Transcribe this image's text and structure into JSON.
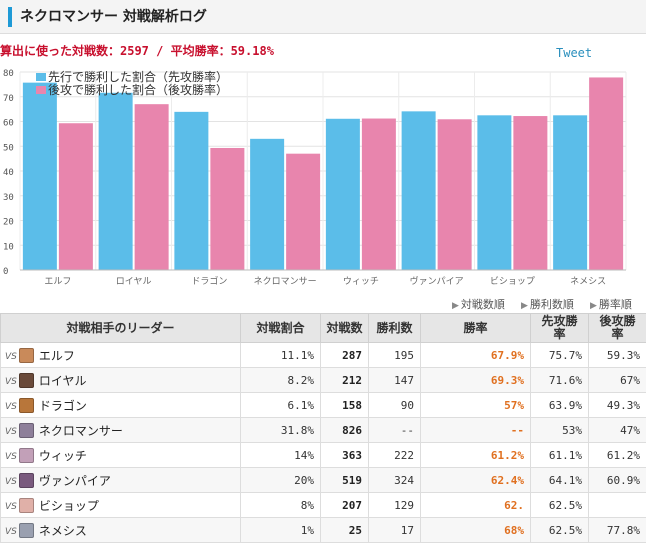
{
  "header": {
    "title": "ネクロマンサー 対戦解析ログ"
  },
  "summary": {
    "text": "算出に使った対戦数：2597 / 平均勝率：59.18%"
  },
  "tweet_label": "Tweet",
  "colors": {
    "first": "#5bbde9",
    "second": "#e885ad",
    "accent": "#1f9ad6",
    "winrate": "#e07020"
  },
  "chart_data": {
    "type": "bar",
    "categories": [
      "エルフ",
      "ロイヤル",
      "ドラゴン",
      "ネクロマンサー",
      "ウィッチ",
      "ヴァンパイア",
      "ビショップ",
      "ネメシス"
    ],
    "series": [
      {
        "name": "先行で勝利した割合（先攻勝率）",
        "values": [
          75.7,
          71.6,
          63.9,
          53,
          61.1,
          64.1,
          62.5,
          62.5
        ]
      },
      {
        "name": "後攻で勝利した割合（後攻勝率）",
        "values": [
          59.3,
          67,
          49.3,
          47,
          61.2,
          60.9,
          62.2,
          77.8
        ]
      }
    ],
    "yticks": [
      0,
      10,
      20,
      30,
      40,
      50,
      60,
      70,
      80
    ],
    "ylim": [
      0,
      80
    ],
    "grid": true,
    "legend": "top-left"
  },
  "sort_links": [
    "対戦数順",
    "勝利数順",
    "勝率順"
  ],
  "table": {
    "headers": [
      "対戦相手のリーダー",
      "対戦割合",
      "対戦数",
      "勝利数",
      "勝率",
      "先攻勝率",
      "後攻勝率"
    ],
    "vs_label": "VS",
    "rows": [
      {
        "leader": "エルフ",
        "ratio": "11.1%",
        "battles": "287",
        "wins": "195",
        "winrate": "67.9%",
        "first": "75.7%",
        "second": "59.3%",
        "avatar": "#c98a5a"
      },
      {
        "leader": "ロイヤル",
        "ratio": "8.2%",
        "battles": "212",
        "wins": "147",
        "winrate": "69.3%",
        "first": "71.6%",
        "second": "67%",
        "avatar": "#6a4a3a"
      },
      {
        "leader": "ドラゴン",
        "ratio": "6.1%",
        "battles": "158",
        "wins": "90",
        "winrate": "57%",
        "first": "63.9%",
        "second": "49.3%",
        "avatar": "#b8763a"
      },
      {
        "leader": "ネクロマンサー",
        "ratio": "31.8%",
        "battles": "826",
        "wins": "--",
        "winrate": "--",
        "first": "53%",
        "second": "47%",
        "avatar": "#8e7f9a"
      },
      {
        "leader": "ウィッチ",
        "ratio": "14%",
        "battles": "363",
        "wins": "222",
        "winrate": "61.2%",
        "first": "61.1%",
        "second": "61.2%",
        "avatar": "#c2a0b8"
      },
      {
        "leader": "ヴァンパイア",
        "ratio": "20%",
        "battles": "519",
        "wins": "324",
        "winrate": "62.4%",
        "first": "64.1%",
        "second": "60.9%",
        "avatar": "#7a5a7e"
      },
      {
        "leader": "ビショップ",
        "ratio": "8%",
        "battles": "207",
        "wins": "129",
        "winrate": "62.",
        "first": "62.5%",
        "second": "",
        "avatar": "#e0b0a8"
      },
      {
        "leader": "ネメシス",
        "ratio": "1%",
        "battles": "25",
        "wins": "17",
        "winrate": "68%",
        "first": "62.5%",
        "second": "77.8%",
        "avatar": "#9aa0b0"
      }
    ]
  }
}
